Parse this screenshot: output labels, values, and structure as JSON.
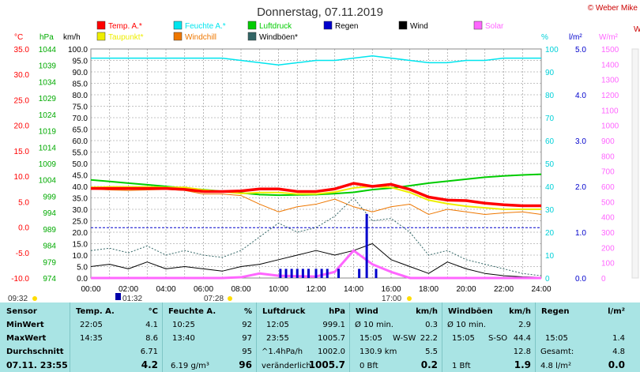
{
  "title": "Donnerstag, 07.11.2019",
  "credit": "© Weber Mike",
  "legend": [
    {
      "label": "Temp. A.*",
      "color": "#ff0000"
    },
    {
      "label": "Feuchte A.*",
      "color": "#00e5ee"
    },
    {
      "label": "Luftdruck",
      "color": "#00cc00"
    },
    {
      "label": "Regen",
      "color": "#0000cc"
    },
    {
      "label": "Wind",
      "color": "#000000"
    },
    {
      "label": "Solar",
      "color": "#ff66ff"
    },
    {
      "label": "Taupunkt*",
      "color": "#eeee00"
    },
    {
      "label": "Windchill",
      "color": "#ee7700"
    },
    {
      "label": "Windböen*",
      "color": "#336666"
    }
  ],
  "axis_units": {
    "temp": "°C",
    "hpa": "hPa",
    "kmh": "km/h",
    "pct": "%",
    "rain": "l/m²",
    "solar": "W/m²",
    "extra": "W"
  },
  "chart_data": {
    "type": "line",
    "x": [
      0,
      1,
      2,
      3,
      4,
      5,
      6,
      7,
      8,
      9,
      10,
      11,
      12,
      13,
      14,
      15,
      16,
      17,
      18,
      19,
      20,
      21,
      22,
      23,
      24
    ],
    "xticks": [
      "00:00",
      "02:00",
      "04:00",
      "06:00",
      "08:00",
      "10:00",
      "12:00",
      "14:00",
      "16:00",
      "18:00",
      "20:00",
      "22:00",
      "24:00"
    ],
    "xlim": [
      0,
      24
    ],
    "axes": {
      "temp": {
        "min": -10,
        "max": 35,
        "ticks": [
          "35.0",
          "30.0",
          "25.0",
          "20.0",
          "15.0",
          "10.0",
          "5.0",
          "0.0",
          "-5.0",
          "-10.0"
        ]
      },
      "hpa": {
        "min": 974,
        "max": 1044,
        "ticks": [
          "1044",
          "1039",
          "1034",
          "1029",
          "1024",
          "1019",
          "1014",
          "1009",
          "1004",
          "999",
          "994",
          "989",
          "984",
          "979",
          "974"
        ]
      },
      "kmh": {
        "min": 0,
        "max": 100,
        "ticks": [
          "100.0",
          "95.0",
          "90.0",
          "85.0",
          "80.0",
          "75.0",
          "70.0",
          "65.0",
          "60.0",
          "55.0",
          "50.0",
          "45.0",
          "40.0",
          "35.0",
          "30.0",
          "25.0",
          "20.0",
          "15.0",
          "10.0",
          "5.0",
          "0.0"
        ]
      },
      "pct": {
        "min": 0,
        "max": 100,
        "ticks": [
          "100",
          "90",
          "80",
          "70",
          "60",
          "50",
          "40",
          "30",
          "20",
          "10",
          "0"
        ]
      },
      "rain": {
        "min": 0,
        "max": 5,
        "ticks": [
          "5.0",
          "4.0",
          "3.0",
          "2.0",
          "1.0",
          "0.0"
        ]
      },
      "solar": {
        "min": 0,
        "max": 1500,
        "ticks": [
          "1500",
          "1400",
          "1300",
          "1200",
          "1100",
          "1000",
          "900",
          "800",
          "700",
          "600",
          "500",
          "400",
          "300",
          "200",
          "100",
          "0"
        ]
      }
    },
    "series": [
      {
        "name": "Feuchte A.*",
        "axis": "pct",
        "color": "#00e5ee",
        "width": 1.5,
        "values": [
          96,
          96,
          96,
          96,
          96,
          96,
          96,
          96,
          95,
          94,
          93,
          94,
          95,
          95,
          96,
          97,
          96,
          95,
          94,
          94,
          95,
          95,
          96,
          96,
          96
        ]
      },
      {
        "name": "Luftdruck",
        "axis": "hpa",
        "color": "#00cc00",
        "width": 2,
        "values": [
          1004,
          1003.5,
          1003,
          1002.5,
          1002,
          1001.5,
          1001,
          1000.5,
          1000,
          999.5,
          999.3,
          999.4,
          999.5,
          999.8,
          1000.2,
          1001,
          1001.5,
          1002.2,
          1003,
          1003.6,
          1004.2,
          1004.8,
          1005.2,
          1005.5,
          1005.7
        ]
      },
      {
        "name": "Windchill",
        "axis": "temp",
        "color": "#ee7700",
        "width": 1,
        "values": [
          7.5,
          7.3,
          7.2,
          7.3,
          7.4,
          7.2,
          6.5,
          6.5,
          6.2,
          4.5,
          3.0,
          4.0,
          4.5,
          5.5,
          4.0,
          3.0,
          4.0,
          4.5,
          2.5,
          3.5,
          3.0,
          2.5,
          2.8,
          3.0,
          2.5
        ]
      },
      {
        "name": "Taupunkt*",
        "axis": "temp",
        "color": "#eeee00",
        "width": 2,
        "values": [
          7.8,
          7.9,
          7.9,
          7.9,
          7.8,
          7.8,
          7.3,
          7.0,
          6.6,
          6.8,
          6.8,
          6.5,
          6.5,
          6.9,
          7.7,
          8.0,
          7.8,
          6.8,
          5.3,
          4.6,
          4.1,
          3.8,
          3.5,
          3.5,
          3.5
        ]
      },
      {
        "name": "Temp. A.*",
        "axis": "temp",
        "color": "#ff0000",
        "width": 3.5,
        "values": [
          7.6,
          7.6,
          7.6,
          7.6,
          7.6,
          7.4,
          7.0,
          7.0,
          7.1,
          7.5,
          7.5,
          7.0,
          7.0,
          7.5,
          8.6,
          8.0,
          8.4,
          7.4,
          5.9,
          5.3,
          5.2,
          4.7,
          4.4,
          4.2,
          4.2
        ]
      },
      {
        "name": "Windböen*",
        "axis": "kmh",
        "color": "#336666",
        "width": 1,
        "dash": "2,2",
        "values": [
          12,
          13,
          11,
          14,
          10,
          12,
          10,
          9,
          12,
          18,
          24,
          20,
          22,
          27,
          35,
          25,
          26,
          20,
          10,
          12,
          8,
          6,
          4,
          2,
          1
        ]
      },
      {
        "name": "Wind",
        "axis": "kmh",
        "color": "#000000",
        "width": 1,
        "values": [
          5,
          6,
          4,
          7,
          4,
          5,
          4,
          3,
          5,
          6,
          8,
          10,
          12,
          10,
          12,
          15,
          8,
          5,
          2,
          7,
          4,
          2,
          1,
          0.5,
          0.3
        ]
      },
      {
        "name": "Solar",
        "axis": "solar",
        "color": "#ff66ff",
        "width": 3,
        "values": [
          0,
          0,
          0,
          0,
          0,
          0,
          0,
          0,
          5,
          30,
          15,
          12,
          10,
          40,
          180,
          90,
          40,
          0,
          0,
          0,
          0,
          0,
          0,
          0,
          0
        ]
      }
    ],
    "rain_bars_kmh_scale": [
      {
        "x": 14.7,
        "value": 28
      },
      {
        "x": 10.1,
        "value": 4
      },
      {
        "x": 10.4,
        "value": 4
      },
      {
        "x": 10.7,
        "value": 4
      },
      {
        "x": 11.0,
        "value": 4
      },
      {
        "x": 11.3,
        "value": 4
      },
      {
        "x": 11.6,
        "value": 4
      },
      {
        "x": 12.0,
        "value": 4
      },
      {
        "x": 12.3,
        "value": 4
      },
      {
        "x": 12.6,
        "value": 4
      },
      {
        "x": 13.2,
        "value": 4
      },
      {
        "x": 14.3,
        "value": 4
      },
      {
        "x": 15.2,
        "value": 4
      }
    ],
    "dashed_line_at_kmh": 22
  },
  "sun": {
    "sunrise": "07:28",
    "sunset": "17:00"
  },
  "moon": {
    "rise": "09:32",
    "set": "01:32"
  },
  "table": {
    "row_labels": [
      "Sensor",
      "MinWert",
      "MaxWert",
      "Durchschnitt",
      "07.11. 23:55"
    ],
    "temp": {
      "h1": "Temp. A.",
      "h2": "°C",
      "min_t": "22:05",
      "min_v": "4.1",
      "max_t": "14:35",
      "max_v": "8.6",
      "avg": "6.71",
      "cur": "4.2"
    },
    "hum": {
      "h1": "Feuchte A.",
      "h2": "%",
      "min_t": "10:25",
      "min_v": "92",
      "max_t": "13:40",
      "max_v": "97",
      "avg": "95",
      "extra": "6.19 g/m³",
      "cur": "96"
    },
    "press": {
      "h1": "Luftdruck",
      "h2": "hPa",
      "min_t": "12:05",
      "min_v": "999.1",
      "max_t": "23:55",
      "max_v": "1005.7",
      "trend": "^1.4hPa/h",
      "avg": "1002.0",
      "status": "veränderlich",
      "cur": "1005.7"
    },
    "wind": {
      "h1": "Wind",
      "h2": "km/h",
      "r1a": "Ø 10 min.",
      "r1b": "0.3",
      "r2a": "15:05",
      "r2b": "W-SW",
      "r2c": "22.2",
      "r3a": "130.9 km",
      "r3b": "5.5",
      "r4a": "0 Bft",
      "cur": "0.2"
    },
    "gust": {
      "h1": "Windböen",
      "h2": "km/h",
      "r1a": "Ø 10 min.",
      "r1b": "2.9",
      "r2a": "15:05",
      "r2b": "S-SO",
      "r2c": "44.4",
      "r3b": "12.8",
      "r4a": "1 Bft",
      "cur": "1.9"
    },
    "rain": {
      "h1": "Regen",
      "h2": "l/m²",
      "r2a": "15:05",
      "r2b": "1.4",
      "r3a": "Gesamt:",
      "r3b": "4.8",
      "r4a": "4.8 l/m²",
      "cur": "0.0"
    }
  }
}
